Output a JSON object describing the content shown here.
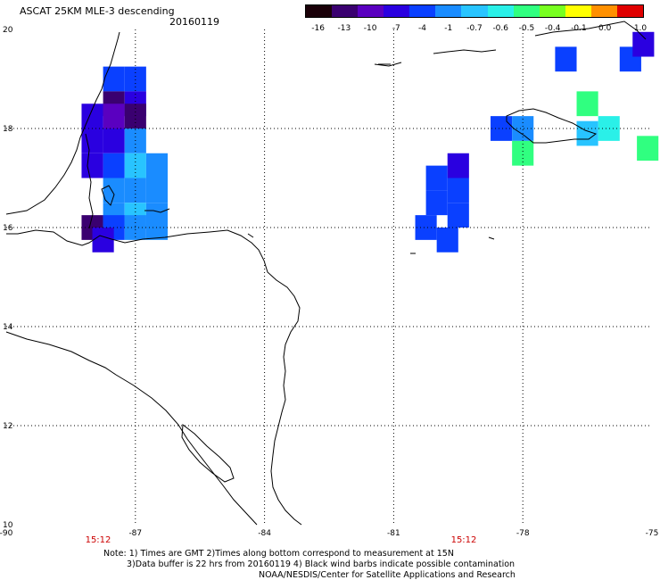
{
  "header": {
    "title": "ASCAT 25KM MLE-3 descending",
    "date": "20160119"
  },
  "colorbar": {
    "labels": [
      "-16",
      "-13",
      "-10",
      "-7",
      "-4",
      "-1",
      "-0.7",
      "-0.6",
      "-0.5",
      "-0.4",
      "-0.1",
      "0.0",
      "1.0"
    ],
    "colors": [
      "#1a0008",
      "#3a0070",
      "#5a00c0",
      "#2a00e0",
      "#0a40ff",
      "#1a8cff",
      "#28c4ff",
      "#2af0e8",
      "#30ff80",
      "#78ff20",
      "#ffff00",
      "#ff9000",
      "#e00000"
    ]
  },
  "axes": {
    "x_ticks": [
      "-90",
      "-87",
      "-84",
      "-81",
      "-78",
      "-75"
    ],
    "y_ticks": [
      "20",
      "18",
      "16",
      "14",
      "12",
      "10"
    ],
    "time_labels": [
      "15:12",
      "15:12"
    ]
  },
  "chart_data": {
    "type": "heatmap",
    "title": "ASCAT 25KM MLE-3 descending",
    "xlim": [
      -90,
      -75
    ],
    "ylim": [
      10,
      20
    ],
    "grid": true,
    "cells": [
      {
        "lon": -87.5,
        "lat": 19.0,
        "value": "-4"
      },
      {
        "lon": -87.0,
        "lat": 19.0,
        "value": "-4"
      },
      {
        "lon": -87.5,
        "lat": 18.5,
        "value": "-13"
      },
      {
        "lon": -87.0,
        "lat": 18.5,
        "value": "-7"
      },
      {
        "lon": -88.0,
        "lat": 18.25,
        "value": "-7"
      },
      {
        "lon": -87.5,
        "lat": 18.25,
        "value": "-10"
      },
      {
        "lon": -87.0,
        "lat": 18.25,
        "value": "-13"
      },
      {
        "lon": -88.0,
        "lat": 17.75,
        "value": "-7"
      },
      {
        "lon": -87.5,
        "lat": 17.75,
        "value": "-7"
      },
      {
        "lon": -87.0,
        "lat": 17.75,
        "value": "-1"
      },
      {
        "lon": -88.0,
        "lat": 17.25,
        "value": "-7"
      },
      {
        "lon": -87.5,
        "lat": 17.25,
        "value": "-4"
      },
      {
        "lon": -87.0,
        "lat": 17.25,
        "value": "-0.7"
      },
      {
        "lon": -86.5,
        "lat": 17.25,
        "value": "-1"
      },
      {
        "lon": -87.5,
        "lat": 16.75,
        "value": "-1"
      },
      {
        "lon": -87.0,
        "lat": 16.75,
        "value": "-1"
      },
      {
        "lon": -86.5,
        "lat": 16.75,
        "value": "-1"
      },
      {
        "lon": -87.5,
        "lat": 16.25,
        "value": "-1"
      },
      {
        "lon": -87.0,
        "lat": 16.25,
        "value": "-0.7"
      },
      {
        "lon": -86.5,
        "lat": 16.25,
        "value": "-1"
      },
      {
        "lon": -88.0,
        "lat": 16.0,
        "value": "-13"
      },
      {
        "lon": -87.5,
        "lat": 16.0,
        "value": "-4"
      },
      {
        "lon": -87.0,
        "lat": 16.0,
        "value": "-1"
      },
      {
        "lon": -86.5,
        "lat": 16.0,
        "value": "-1"
      },
      {
        "lon": -87.75,
        "lat": 15.75,
        "value": "-7"
      },
      {
        "lon": -79.5,
        "lat": 17.25,
        "value": "-7"
      },
      {
        "lon": -80.0,
        "lat": 17.0,
        "value": "-4"
      },
      {
        "lon": -79.5,
        "lat": 16.75,
        "value": "-4"
      },
      {
        "lon": -80.0,
        "lat": 16.5,
        "value": "-4"
      },
      {
        "lon": -79.5,
        "lat": 16.25,
        "value": "-4"
      },
      {
        "lon": -80.25,
        "lat": 16.0,
        "value": "-4"
      },
      {
        "lon": -79.75,
        "lat": 15.75,
        "value": "-4"
      },
      {
        "lon": -78.5,
        "lat": 18.0,
        "value": "-4"
      },
      {
        "lon": -78.0,
        "lat": 18.0,
        "value": "-1"
      },
      {
        "lon": -78.0,
        "lat": 17.5,
        "value": "-0.5"
      },
      {
        "lon": -76.5,
        "lat": 18.5,
        "value": "-0.5"
      },
      {
        "lon": -76.0,
        "lat": 18.0,
        "value": "-0.6"
      },
      {
        "lon": -76.5,
        "lat": 17.9,
        "value": "-0.7"
      },
      {
        "lon": -77.0,
        "lat": 19.4,
        "value": "-4"
      },
      {
        "lon": -75.5,
        "lat": 19.4,
        "value": "-4"
      },
      {
        "lon": -75.2,
        "lat": 19.7,
        "value": "-7"
      },
      {
        "lon": -75.1,
        "lat": 17.6,
        "value": "-0.5"
      }
    ]
  },
  "footnote": {
    "line1": "Note: 1) Times are GMT 2)Times along bottom correspond to measurement at 15N",
    "line2": "3)Data buffer is 22 hrs from 20160119 4) Black wind barbs indicate possible contamination",
    "line3": "NOAA/NESDIS/Center for Satellite Applications and Research"
  }
}
